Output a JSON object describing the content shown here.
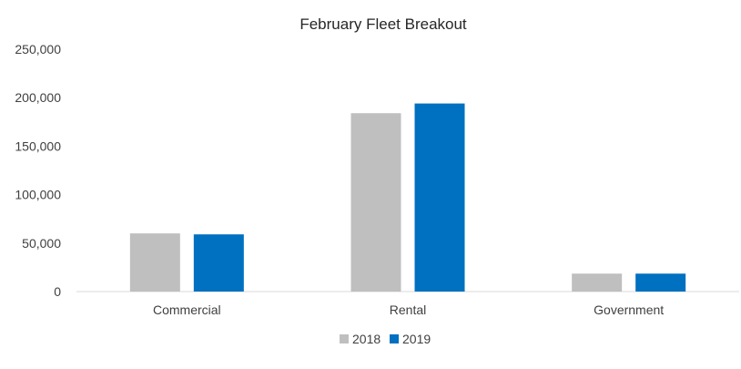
{
  "chart_data": {
    "type": "bar",
    "title": "February Fleet Breakout",
    "xlabel": "",
    "ylabel": "",
    "categories": [
      "Commercial",
      "Rental",
      "Government"
    ],
    "series": [
      {
        "name": "2018",
        "color": "#bfbfbf",
        "values": [
          60000,
          184000,
          18500
        ]
      },
      {
        "name": "2019",
        "color": "#0070c0",
        "values": [
          59000,
          194000,
          18500
        ]
      }
    ],
    "ylim": [
      0,
      250000
    ],
    "yticks": [
      0,
      50000,
      100000,
      150000,
      200000,
      250000
    ],
    "ytick_labels": [
      "0",
      "50,000",
      "100,000",
      "150,000",
      "200,000",
      "250,000"
    ],
    "grid": false,
    "legend_position": "bottom"
  }
}
